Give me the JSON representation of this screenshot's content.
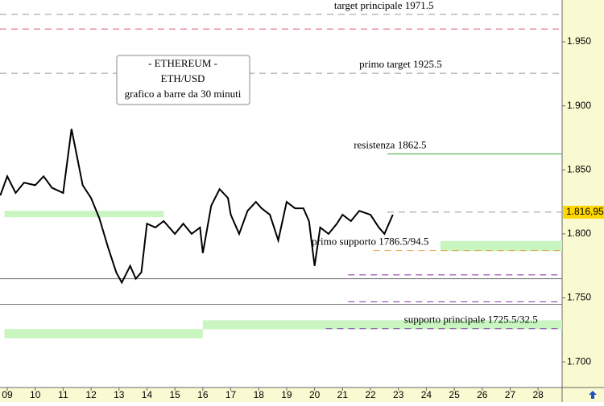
{
  "chart_data": {
    "type": "line",
    "title_lines": [
      "- ETHEREUM -",
      "ETH/USD",
      "grafico a barre da 30 minuti"
    ],
    "x": [
      8.75,
      9.0,
      9.3,
      9.6,
      10,
      10.3,
      10.6,
      11,
      11.3,
      11.5,
      11.7,
      12,
      12.3,
      12.6,
      12.9,
      13.1,
      13.4,
      13.6,
      13.8,
      14,
      14.3,
      14.6,
      15,
      15.3,
      15.6,
      15.9,
      16,
      16.3,
      16.6,
      16.9,
      17,
      17.3,
      17.6,
      17.9,
      18.1,
      18.4,
      18.7,
      19,
      19.3,
      19.6,
      19.8,
      20,
      20.2,
      20.5,
      20.8,
      21,
      21.3,
      21.6,
      22,
      22.3,
      22.5,
      22.8
    ],
    "series": [
      {
        "color": "#000000",
        "values": [
          1830,
          1845,
          1832,
          1840,
          1838,
          1845,
          1836,
          1832,
          1882,
          1860,
          1838,
          1828,
          1812,
          1790,
          1770,
          1762,
          1775,
          1765,
          1770,
          1808,
          1805,
          1810,
          1800,
          1808,
          1800,
          1805,
          1785,
          1822,
          1835,
          1828,
          1815,
          1800,
          1818,
          1825,
          1820,
          1815,
          1795,
          1825,
          1820,
          1820,
          1810,
          1775,
          1805,
          1800,
          1808,
          1815,
          1810,
          1818,
          1815,
          1805,
          1800,
          1815
        ]
      }
    ],
    "xlim": [
      8.74,
      28.86
    ],
    "ylim": [
      1680,
      1982.7
    ],
    "xticks": [
      {
        "value": 9,
        "label": "09"
      },
      10,
      11,
      12,
      13,
      14,
      15,
      16,
      17,
      18,
      19,
      20,
      21,
      22,
      23,
      24,
      25,
      26,
      27,
      28
    ],
    "yticks": [
      {
        "value": 1700,
        "label": "1.700"
      },
      {
        "value": 1750,
        "label": "1.750"
      },
      {
        "value": 1800,
        "label": "1.800"
      },
      {
        "value": 1850,
        "label": "1.850"
      },
      {
        "value": 1900,
        "label": "1.900"
      },
      {
        "value": 1950,
        "label": "1.950"
      }
    ],
    "last_price": {
      "value": 1816.95,
      "label": "1.816,95"
    },
    "levels": [
      {
        "value": 1971.5,
        "color": "#999999",
        "dash": true,
        "from": 8.74,
        "label": "target principale 1971.5",
        "label_x": 20.7
      },
      {
        "value": 1960,
        "color": "#e06070",
        "dash": true,
        "from": 8.74
      },
      {
        "value": 1925.5,
        "color": "#999999",
        "dash": true,
        "from": 8.74,
        "label": "primo target 1925.5",
        "label_x": 21.6
      },
      {
        "value": 1862.5,
        "color": "#33aa33",
        "dash": false,
        "from": 22.6,
        "label": "resistenza 1862.5",
        "label_x": 21.4
      },
      {
        "value": 1816.95,
        "color": "#999999",
        "dash": true,
        "from": 22.6
      },
      {
        "value": 1787,
        "color": "#e0a040",
        "dash": true,
        "from": 22.1,
        "label": "primo supporto 1786.5/94.5",
        "label_x": 19.9
      },
      {
        "value": 1768,
        "color": "#8030a0",
        "dash": true,
        "from": 21.2
      },
      {
        "value": 1765,
        "color": "#777777",
        "dash": false,
        "from": 8.74
      },
      {
        "value": 1747,
        "color": "#8030a0",
        "dash": true,
        "from": 21.2
      },
      {
        "value": 1745,
        "color": "#777777",
        "dash": false,
        "from": 8.74
      },
      {
        "value": 1726,
        "color": "#8030a0",
        "dash": true,
        "from": 20.4,
        "label": "supporto principale 1725.5/32.5",
        "label_x": 23.2
      }
    ],
    "bands": [
      {
        "low": 1813,
        "high": 1818,
        "from": 8.9,
        "to": 14.6
      },
      {
        "low": 1786.5,
        "high": 1794.5,
        "from": 24.5,
        "to": 28.86
      },
      {
        "low": 1725.5,
        "high": 1732.5,
        "from": 16,
        "to": 28.86
      },
      {
        "low": 1718.5,
        "high": 1725.7,
        "from": 8.9,
        "to": 16
      }
    ]
  }
}
